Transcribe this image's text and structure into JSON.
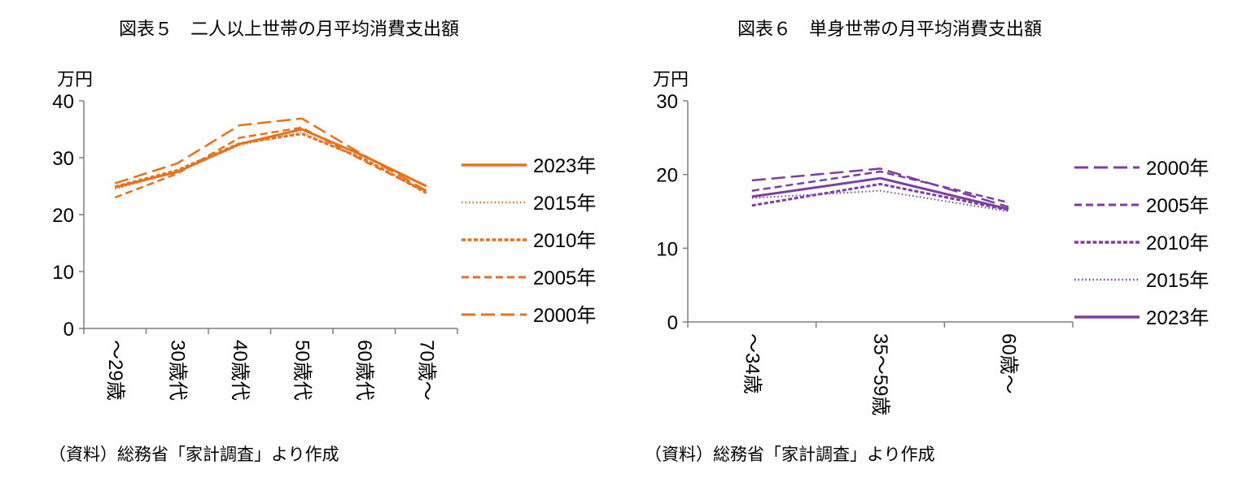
{
  "charts": [
    {
      "title": "図表５　二人以上世帯の月平均消費支出額",
      "source": "（資料）総務省「家計調査」より作成",
      "color": "#E8711C",
      "chart_data": {
        "type": "line",
        "title": "図表５　二人以上世帯の月平均消費支出額",
        "ylabel": "万円",
        "ylim": [
          0,
          40
        ],
        "yticks": [
          "0",
          "10",
          "20",
          "30",
          "40"
        ],
        "categories": [
          "～29歳",
          "30歳代",
          "40歳代",
          "50歳代",
          "60歳代",
          "70歳～"
        ],
        "legend_position": "right",
        "series": [
          {
            "name": "2023年",
            "style": "solid",
            "values": [
              24.8,
              27.5,
              32.4,
              35.0,
              30.3,
              25.0
            ]
          },
          {
            "name": "2015年",
            "style": "dotted",
            "values": [
              24.5,
              27.6,
              32.2,
              34.5,
              29.5,
              24.2
            ]
          },
          {
            "name": "2010年",
            "style": "small-dash",
            "values": [
              24.9,
              27.8,
              32.5,
              34.2,
              29.8,
              23.8
            ]
          },
          {
            "name": "2005年",
            "style": "dash",
            "values": [
              23.0,
              27.2,
              33.5,
              35.3,
              29.4,
              24.0
            ]
          },
          {
            "name": "2000年",
            "style": "long-dash",
            "values": [
              25.5,
              29.0,
              35.7,
              36.9,
              30.4,
              24.2
            ]
          }
        ]
      }
    },
    {
      "title": "図表６　単身世帯の月平均消費支出額",
      "source": "（資料）総務省「家計調査」より作成",
      "color": "#7B3FA0",
      "chart_data": {
        "type": "line",
        "title": "図表６　単身世帯の月平均消費支出額",
        "ylabel": "万円",
        "ylim": [
          0,
          30
        ],
        "yticks": [
          "0",
          "10",
          "20",
          "30"
        ],
        "categories": [
          "～34歳",
          "35～59歳",
          "60歳～"
        ],
        "legend_position": "right",
        "series": [
          {
            "name": "2000年",
            "style": "long-dash",
            "values": [
              19.2,
              20.8,
              15.6
            ]
          },
          {
            "name": "2005年",
            "style": "dash",
            "values": [
              17.8,
              20.4,
              16.2
            ]
          },
          {
            "name": "2010年",
            "style": "small-dash",
            "values": [
              15.8,
              18.7,
              15.2
            ]
          },
          {
            "name": "2015年",
            "style": "dotted",
            "values": [
              16.8,
              17.8,
              15.0
            ]
          },
          {
            "name": "2023年",
            "style": "solid",
            "values": [
              17.0,
              19.5,
              15.3
            ]
          }
        ]
      }
    }
  ]
}
